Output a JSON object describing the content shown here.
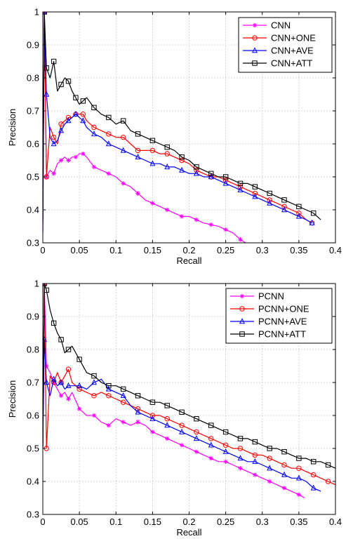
{
  "chart_data": [
    {
      "type": "line",
      "xlabel": "Recall",
      "ylabel": "Precision",
      "xlim": [
        0,
        0.4
      ],
      "ylim": [
        0.3,
        1
      ],
      "xticks": [
        0,
        0.05,
        0.1,
        0.15,
        0.2,
        0.25,
        0.3,
        0.35,
        0.4
      ],
      "yticks": [
        0.3,
        0.4,
        0.5,
        0.6,
        0.7,
        0.8,
        0.9,
        1
      ],
      "xtick_labels": [
        "0",
        "0.05",
        "0.1",
        "0.15",
        "0.2",
        "0.25",
        "0.3",
        "0.35",
        "0.4"
      ],
      "ytick_labels": [
        "0.3",
        "0.4",
        "0.5",
        "0.6",
        "0.7",
        "0.8",
        "0.9",
        "1"
      ],
      "grid": true,
      "legend_position": "top-right",
      "series": [
        {
          "name": "CNN",
          "color": "#ff00ff",
          "marker": "asterisk",
          "x": [
            0,
            0.002,
            0.005,
            0.01,
            0.015,
            0.02,
            0.025,
            0.03,
            0.035,
            0.04,
            0.045,
            0.05,
            0.055,
            0.06,
            0.07,
            0.08,
            0.09,
            0.1,
            0.11,
            0.12,
            0.13,
            0.14,
            0.15,
            0.16,
            0.17,
            0.18,
            0.19,
            0.2,
            0.21,
            0.22,
            0.23,
            0.24,
            0.25,
            0.26,
            0.27,
            0.277
          ],
          "y": [
            0.33,
            1.0,
            0.5,
            0.52,
            0.51,
            0.54,
            0.55,
            0.56,
            0.55,
            0.56,
            0.56,
            0.57,
            0.57,
            0.56,
            0.53,
            0.52,
            0.51,
            0.5,
            0.48,
            0.47,
            0.45,
            0.43,
            0.42,
            0.41,
            0.4,
            0.39,
            0.38,
            0.38,
            0.37,
            0.36,
            0.355,
            0.35,
            0.34,
            0.33,
            0.31,
            0.3
          ]
        },
        {
          "name": "CNN+ONE",
          "color": "#ff0000",
          "marker": "circle",
          "x": [
            0,
            0.002,
            0.005,
            0.01,
            0.015,
            0.02,
            0.025,
            0.03,
            0.035,
            0.04,
            0.045,
            0.05,
            0.055,
            0.06,
            0.07,
            0.08,
            0.09,
            0.1,
            0.11,
            0.12,
            0.13,
            0.14,
            0.15,
            0.16,
            0.17,
            0.18,
            0.19,
            0.2,
            0.21,
            0.22,
            0.23,
            0.24,
            0.25,
            0.26,
            0.27,
            0.28,
            0.29,
            0.3,
            0.31,
            0.32,
            0.33,
            0.34,
            0.35,
            0.36,
            0.368
          ],
          "y": [
            0.36,
            1.0,
            0.5,
            0.65,
            0.62,
            0.6,
            0.66,
            0.67,
            0.68,
            0.68,
            0.69,
            0.69,
            0.69,
            0.67,
            0.65,
            0.64,
            0.63,
            0.62,
            0.62,
            0.6,
            0.58,
            0.58,
            0.58,
            0.57,
            0.57,
            0.56,
            0.55,
            0.54,
            0.52,
            0.51,
            0.5,
            0.5,
            0.49,
            0.48,
            0.47,
            0.46,
            0.45,
            0.44,
            0.43,
            0.42,
            0.41,
            0.4,
            0.39,
            0.37,
            0.36
          ]
        },
        {
          "name": "CNN+AVE",
          "color": "#0000ff",
          "marker": "triangle",
          "x": [
            0,
            0.002,
            0.005,
            0.01,
            0.015,
            0.02,
            0.025,
            0.03,
            0.035,
            0.04,
            0.045,
            0.05,
            0.055,
            0.06,
            0.07,
            0.08,
            0.09,
            0.1,
            0.11,
            0.12,
            0.13,
            0.14,
            0.15,
            0.16,
            0.17,
            0.18,
            0.19,
            0.2,
            0.21,
            0.22,
            0.23,
            0.24,
            0.25,
            0.26,
            0.27,
            0.28,
            0.29,
            0.3,
            0.31,
            0.32,
            0.33,
            0.34,
            0.35,
            0.36,
            0.368
          ],
          "y": [
            0.33,
            1.0,
            0.75,
            0.62,
            0.6,
            0.61,
            0.64,
            0.66,
            0.67,
            0.68,
            0.69,
            0.68,
            0.67,
            0.65,
            0.63,
            0.62,
            0.6,
            0.59,
            0.58,
            0.57,
            0.56,
            0.55,
            0.54,
            0.54,
            0.53,
            0.53,
            0.52,
            0.51,
            0.51,
            0.5,
            0.5,
            0.49,
            0.48,
            0.47,
            0.46,
            0.45,
            0.44,
            0.43,
            0.42,
            0.41,
            0.4,
            0.39,
            0.38,
            0.37,
            0.36
          ]
        },
        {
          "name": "CNN+ATT",
          "color": "#000000",
          "marker": "square",
          "x": [
            0,
            0.002,
            0.005,
            0.01,
            0.015,
            0.02,
            0.025,
            0.03,
            0.035,
            0.04,
            0.045,
            0.05,
            0.055,
            0.06,
            0.07,
            0.08,
            0.09,
            0.1,
            0.11,
            0.12,
            0.13,
            0.14,
            0.15,
            0.16,
            0.17,
            0.18,
            0.19,
            0.2,
            0.21,
            0.22,
            0.23,
            0.24,
            0.25,
            0.26,
            0.27,
            0.28,
            0.29,
            0.3,
            0.31,
            0.32,
            0.33,
            0.34,
            0.35,
            0.36,
            0.37,
            0.38
          ],
          "y": [
            0.36,
            1.0,
            0.83,
            0.8,
            0.85,
            0.76,
            0.78,
            0.8,
            0.79,
            0.76,
            0.74,
            0.72,
            0.73,
            0.74,
            0.71,
            0.69,
            0.68,
            0.66,
            0.67,
            0.64,
            0.63,
            0.62,
            0.61,
            0.6,
            0.59,
            0.58,
            0.56,
            0.55,
            0.53,
            0.52,
            0.51,
            0.5,
            0.5,
            0.49,
            0.48,
            0.48,
            0.47,
            0.46,
            0.45,
            0.44,
            0.43,
            0.42,
            0.41,
            0.4,
            0.39,
            0.37
          ]
        }
      ]
    },
    {
      "type": "line",
      "xlabel": "Recall",
      "ylabel": "Precision",
      "xlim": [
        0,
        0.4
      ],
      "ylim": [
        0.3,
        1
      ],
      "xticks": [
        0,
        0.05,
        0.1,
        0.15,
        0.2,
        0.25,
        0.3,
        0.35,
        0.4
      ],
      "yticks": [
        0.3,
        0.4,
        0.5,
        0.6,
        0.7,
        0.8,
        0.9,
        1
      ],
      "xtick_labels": [
        "0",
        "0.05",
        "0.1",
        "0.15",
        "0.2",
        "0.25",
        "0.3",
        "0.35",
        "0.4"
      ],
      "ytick_labels": [
        "0.3",
        "0.4",
        "0.5",
        "0.6",
        "0.7",
        "0.8",
        "0.9",
        "1"
      ],
      "grid": true,
      "legend_position": "top-right",
      "series": [
        {
          "name": "PCNN",
          "color": "#ff00ff",
          "marker": "asterisk",
          "x": [
            0,
            0.002,
            0.005,
            0.01,
            0.015,
            0.02,
            0.025,
            0.03,
            0.035,
            0.04,
            0.05,
            0.06,
            0.07,
            0.08,
            0.09,
            0.1,
            0.11,
            0.12,
            0.13,
            0.14,
            0.15,
            0.16,
            0.17,
            0.18,
            0.19,
            0.2,
            0.21,
            0.22,
            0.23,
            0.24,
            0.25,
            0.26,
            0.27,
            0.28,
            0.29,
            0.3,
            0.31,
            0.32,
            0.33,
            0.34,
            0.35,
            0.358
          ],
          "y": [
            0.5,
            1.0,
            0.75,
            0.73,
            0.7,
            0.68,
            0.66,
            0.67,
            0.65,
            0.67,
            0.62,
            0.6,
            0.6,
            0.58,
            0.57,
            0.59,
            0.58,
            0.57,
            0.58,
            0.57,
            0.55,
            0.54,
            0.53,
            0.52,
            0.51,
            0.5,
            0.49,
            0.48,
            0.47,
            0.46,
            0.46,
            0.45,
            0.44,
            0.43,
            0.42,
            0.41,
            0.4,
            0.39,
            0.38,
            0.37,
            0.36,
            0.35
          ]
        },
        {
          "name": "PCNN+ONE",
          "color": "#ff0000",
          "marker": "circle",
          "x": [
            0,
            0.002,
            0.005,
            0.01,
            0.015,
            0.02,
            0.025,
            0.03,
            0.035,
            0.04,
            0.05,
            0.06,
            0.07,
            0.08,
            0.09,
            0.1,
            0.11,
            0.12,
            0.13,
            0.14,
            0.15,
            0.16,
            0.17,
            0.18,
            0.19,
            0.2,
            0.21,
            0.22,
            0.23,
            0.24,
            0.25,
            0.26,
            0.27,
            0.28,
            0.29,
            0.3,
            0.31,
            0.32,
            0.33,
            0.34,
            0.35,
            0.36,
            0.37,
            0.38,
            0.39,
            0.4
          ],
          "y": [
            0.5,
            1.0,
            0.5,
            0.72,
            0.7,
            0.73,
            0.7,
            0.72,
            0.74,
            0.7,
            0.68,
            0.67,
            0.66,
            0.67,
            0.66,
            0.65,
            0.64,
            0.63,
            0.62,
            0.61,
            0.6,
            0.6,
            0.59,
            0.58,
            0.57,
            0.56,
            0.55,
            0.54,
            0.53,
            0.52,
            0.51,
            0.5,
            0.5,
            0.49,
            0.48,
            0.48,
            0.47,
            0.46,
            0.45,
            0.44,
            0.44,
            0.43,
            0.42,
            0.41,
            0.4,
            0.39
          ]
        },
        {
          "name": "PCNN+AVE",
          "color": "#0000ff",
          "marker": "triangle",
          "x": [
            0,
            0.002,
            0.005,
            0.01,
            0.015,
            0.02,
            0.025,
            0.03,
            0.035,
            0.04,
            0.05,
            0.06,
            0.07,
            0.08,
            0.09,
            0.1,
            0.11,
            0.12,
            0.13,
            0.14,
            0.15,
            0.16,
            0.17,
            0.18,
            0.19,
            0.2,
            0.21,
            0.22,
            0.23,
            0.24,
            0.25,
            0.26,
            0.27,
            0.28,
            0.29,
            0.3,
            0.31,
            0.32,
            0.33,
            0.34,
            0.35,
            0.36,
            0.37,
            0.38
          ],
          "y": [
            0.5,
            0.83,
            0.7,
            0.66,
            0.71,
            0.69,
            0.7,
            0.68,
            0.69,
            0.69,
            0.69,
            0.68,
            0.7,
            0.71,
            0.68,
            0.67,
            0.66,
            0.63,
            0.61,
            0.6,
            0.59,
            0.58,
            0.57,
            0.56,
            0.55,
            0.54,
            0.53,
            0.52,
            0.51,
            0.5,
            0.49,
            0.48,
            0.47,
            0.46,
            0.46,
            0.45,
            0.44,
            0.43,
            0.42,
            0.41,
            0.41,
            0.4,
            0.38,
            0.37
          ]
        },
        {
          "name": "PCNN+ATT",
          "color": "#000000",
          "marker": "square",
          "x": [
            0,
            0.002,
            0.005,
            0.01,
            0.015,
            0.02,
            0.025,
            0.03,
            0.035,
            0.04,
            0.05,
            0.06,
            0.07,
            0.08,
            0.09,
            0.1,
            0.11,
            0.12,
            0.13,
            0.14,
            0.15,
            0.16,
            0.17,
            0.18,
            0.19,
            0.2,
            0.21,
            0.22,
            0.23,
            0.24,
            0.25,
            0.26,
            0.27,
            0.28,
            0.29,
            0.3,
            0.31,
            0.32,
            0.33,
            0.34,
            0.35,
            0.36,
            0.37,
            0.38,
            0.39,
            0.4
          ],
          "y": [
            0.5,
            1.0,
            0.98,
            0.92,
            0.88,
            0.85,
            0.83,
            0.79,
            0.8,
            0.81,
            0.77,
            0.73,
            0.72,
            0.7,
            0.69,
            0.69,
            0.68,
            0.67,
            0.66,
            0.65,
            0.64,
            0.64,
            0.63,
            0.62,
            0.61,
            0.6,
            0.59,
            0.58,
            0.57,
            0.56,
            0.55,
            0.54,
            0.53,
            0.53,
            0.52,
            0.51,
            0.5,
            0.5,
            0.49,
            0.48,
            0.47,
            0.47,
            0.46,
            0.46,
            0.45,
            0.44
          ]
        }
      ]
    }
  ]
}
